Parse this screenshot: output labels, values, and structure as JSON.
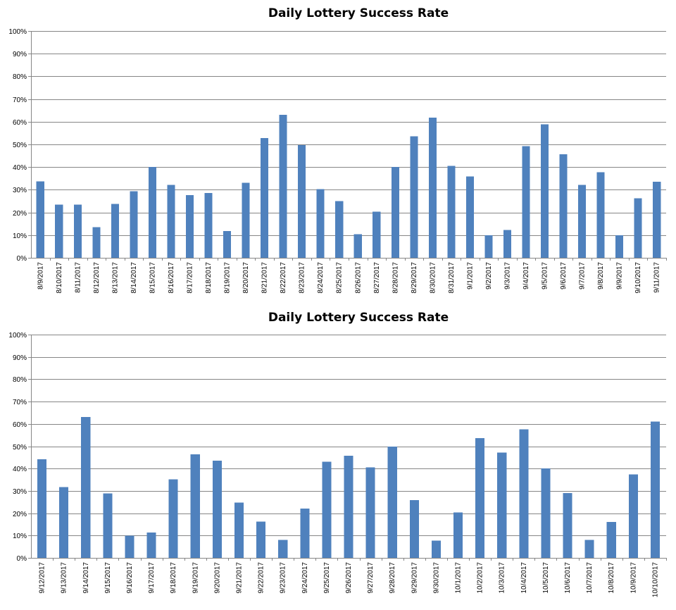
{
  "colors": {
    "bar": "#4F81BD",
    "grid": "#868686"
  },
  "chart_data": [
    {
      "type": "bar",
      "title": "Daily Lottery Success Rate",
      "xlabel": "",
      "ylabel": "",
      "ylim": [
        0,
        100
      ],
      "y_unit": "%",
      "y_ticks": [
        "0%",
        "10%",
        "20%",
        "30%",
        "40%",
        "50%",
        "60%",
        "70%",
        "80%",
        "90%",
        "100%"
      ],
      "grid": true,
      "legend": "none",
      "categories": [
        "8/9/2017",
        "8/10/2017",
        "8/11/2017",
        "8/12/2017",
        "8/13/2017",
        "8/14/2017",
        "8/15/2017",
        "8/16/2017",
        "8/17/2017",
        "8/18/2017",
        "8/19/2017",
        "8/20/2017",
        "8/21/2017",
        "8/22/2017",
        "8/23/2017",
        "8/24/2017",
        "8/25/2017",
        "8/26/2017",
        "8/27/2017",
        "8/28/2017",
        "8/29/2017",
        "8/30/2017",
        "8/31/2017",
        "9/1/2017",
        "9/2/2017",
        "9/3/2017",
        "9/4/2017",
        "9/5/2017",
        "9/6/2017",
        "9/7/2017",
        "9/8/2017",
        "9/9/2017",
        "9/10/2017",
        "9/11/2017"
      ],
      "values": [
        33.7,
        23.5,
        23.5,
        13.5,
        23.7,
        29.3,
        40.1,
        32.2,
        27.7,
        28.5,
        11.8,
        33.0,
        52.8,
        63.0,
        49.7,
        30.3,
        25.0,
        10.4,
        20.4,
        40.1,
        53.6,
        61.8,
        40.6,
        35.9,
        10.0,
        12.2,
        49.2,
        58.9,
        45.7,
        32.2,
        37.7,
        9.9,
        26.2,
        33.5
      ]
    },
    {
      "type": "bar",
      "title": "Daily Lottery Success Rate",
      "xlabel": "",
      "ylabel": "",
      "ylim": [
        0,
        100
      ],
      "y_unit": "%",
      "y_ticks": [
        "0%",
        "10%",
        "20%",
        "30%",
        "40%",
        "50%",
        "60%",
        "70%",
        "80%",
        "90%",
        "100%"
      ],
      "grid": true,
      "legend": "none",
      "categories": [
        "9/12/2017",
        "9/13/2017",
        "9/14/2017",
        "9/15/2017",
        "9/16/2017",
        "9/17/2017",
        "9/18/2017",
        "9/19/2017",
        "9/20/2017",
        "9/21/2017",
        "9/22/2017",
        "9/23/2017",
        "9/24/2017",
        "9/25/2017",
        "9/26/2017",
        "9/27/2017",
        "9/28/2017",
        "9/29/2017",
        "9/30/2017",
        "10/1/2017",
        "10/2/2017",
        "10/3/2017",
        "10/4/2017",
        "10/5/2017",
        "10/6/2017",
        "10/7/2017",
        "10/8/2017",
        "10/9/2017",
        "10/10/2017"
      ],
      "values": [
        44.2,
        31.7,
        63.1,
        28.9,
        9.9,
        11.3,
        35.2,
        46.3,
        43.5,
        24.8,
        16.2,
        8.1,
        22.1,
        43.1,
        45.8,
        40.6,
        49.9,
        25.9,
        7.8,
        20.4,
        53.6,
        47.1,
        57.6,
        40.0,
        29.1,
        8.1,
        16.1,
        37.4,
        61.1
      ]
    }
  ]
}
